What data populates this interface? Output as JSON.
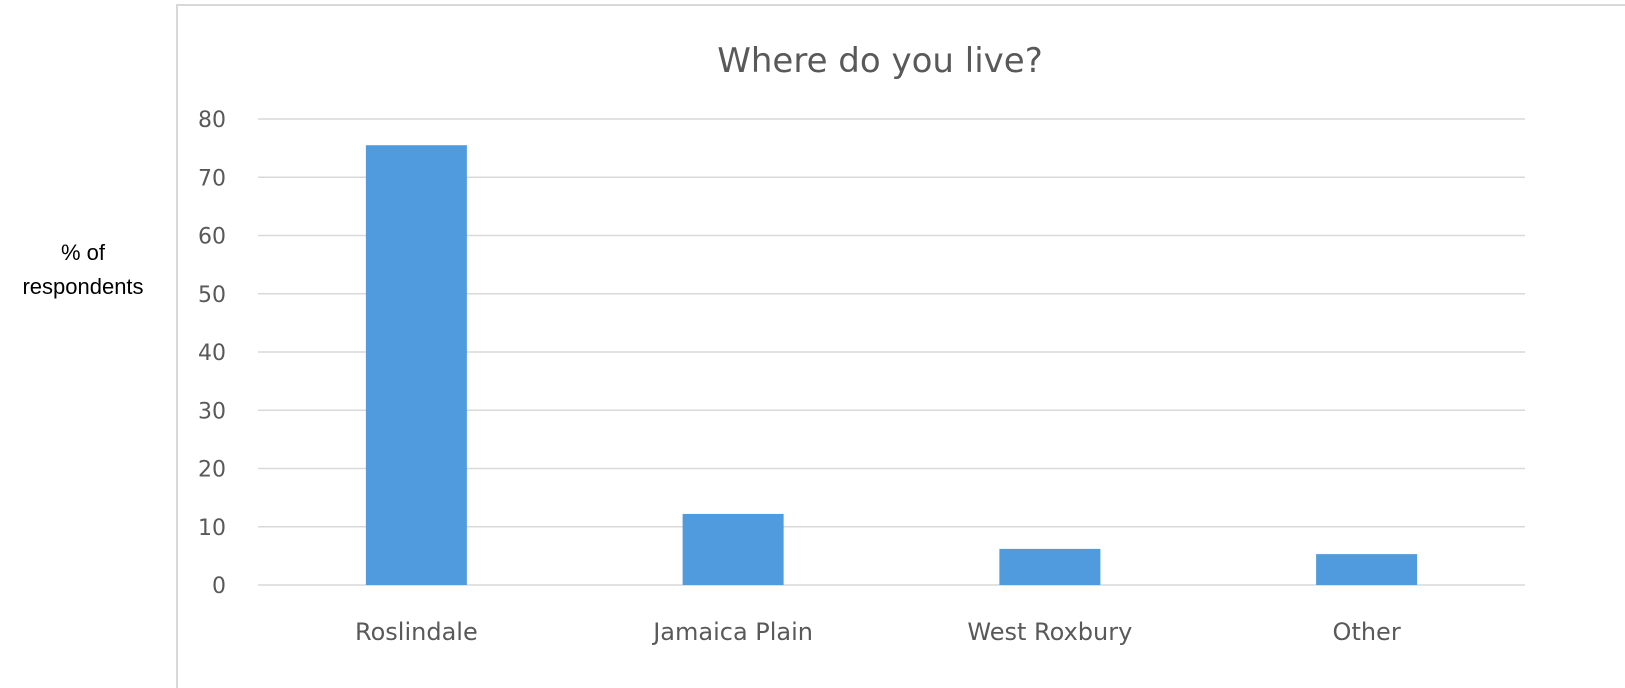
{
  "chart_data": {
    "type": "bar",
    "title": "Where do you live?",
    "xlabel": "",
    "ylabel": "% of respondents",
    "ylabel_lines": [
      "% of",
      "respondents"
    ],
    "categories": [
      "Roslindale",
      "Jamaica Plain",
      "West Roxbury",
      "Other"
    ],
    "values": [
      75.5,
      12.2,
      6.2,
      5.3
    ],
    "ylim": [
      0,
      80
    ],
    "yticks": [
      0,
      10,
      20,
      30,
      40,
      50,
      60,
      70,
      80
    ],
    "grid": true,
    "legend": "none",
    "bar_color": "#4f9bde",
    "grid_color": "#d9d9d9",
    "text_color": "#595959"
  }
}
